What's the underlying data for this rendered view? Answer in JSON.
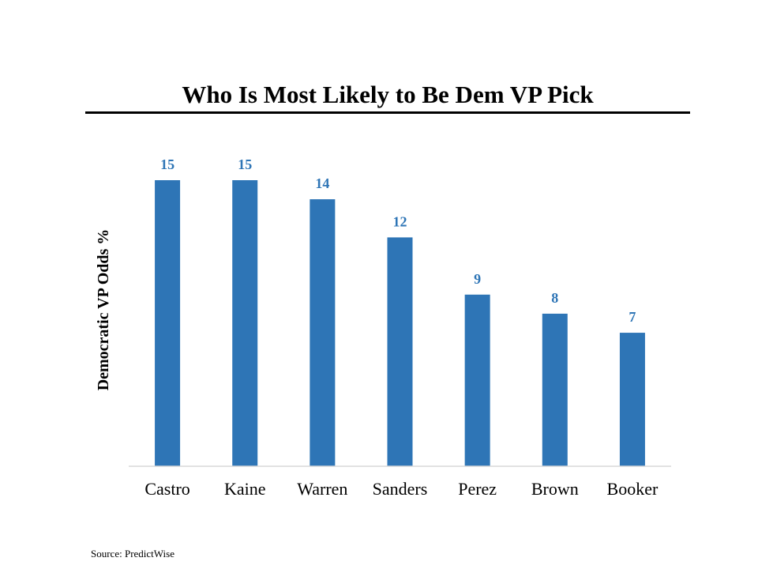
{
  "chart_data": {
    "type": "bar",
    "title": "Who Is Most Likely to Be Dem VP Pick",
    "ylabel": "Democratic VP Odds %",
    "xlabel": "",
    "categories": [
      "Castro",
      "Kaine",
      "Warren",
      "Sanders",
      "Perez",
      "Brown",
      "Booker"
    ],
    "values": [
      15,
      15,
      14,
      12,
      9,
      8,
      7
    ],
    "ylim": [
      0,
      15
    ],
    "grid": false,
    "legend": "none",
    "bar_color": "#2e75b6",
    "data_label_color": "#2e75b6"
  },
  "source": "Source: PredictWise"
}
